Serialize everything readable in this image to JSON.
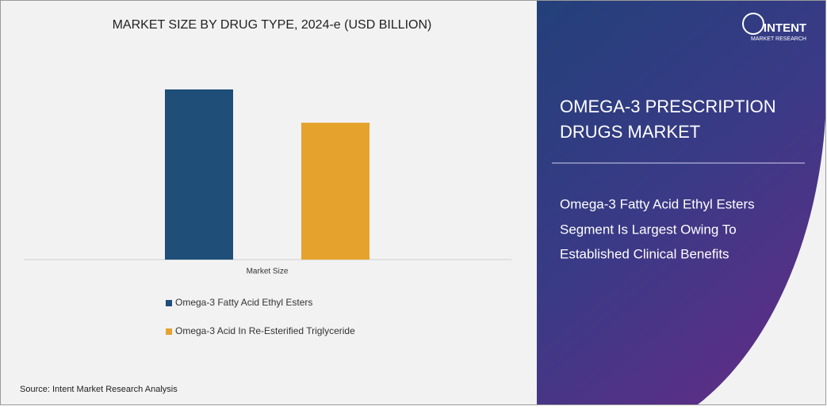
{
  "chart_data": {
    "type": "bar",
    "title": "MARKET SIZE BY DRUG TYPE, 2024-e (USD BILLION)",
    "categories": [
      "Market Size"
    ],
    "series": [
      {
        "name": "Omega-3 Fatty Acid Ethyl Esters",
        "color": "#1f4e79",
        "values": [
          2.15
        ]
      },
      {
        "name": "Omega-3 Acid In Re-Esterified Triglyceride",
        "color": "#e5a32e",
        "values": [
          1.73
        ]
      }
    ],
    "source": "Source: Intent Market Research Analysis"
  },
  "panel": {
    "logo": {
      "name": "INTENT",
      "tagline": "MARKET RESEARCH"
    },
    "title_lines": [
      "OMEGA-3 PRESCRIPTION",
      "DRUGS MARKET"
    ],
    "subtitle_lines": [
      "Omega-3 Fatty Acid Ethyl Esters",
      "Segment Is Largest Owing To",
      "Established Clinical Benefits"
    ]
  }
}
